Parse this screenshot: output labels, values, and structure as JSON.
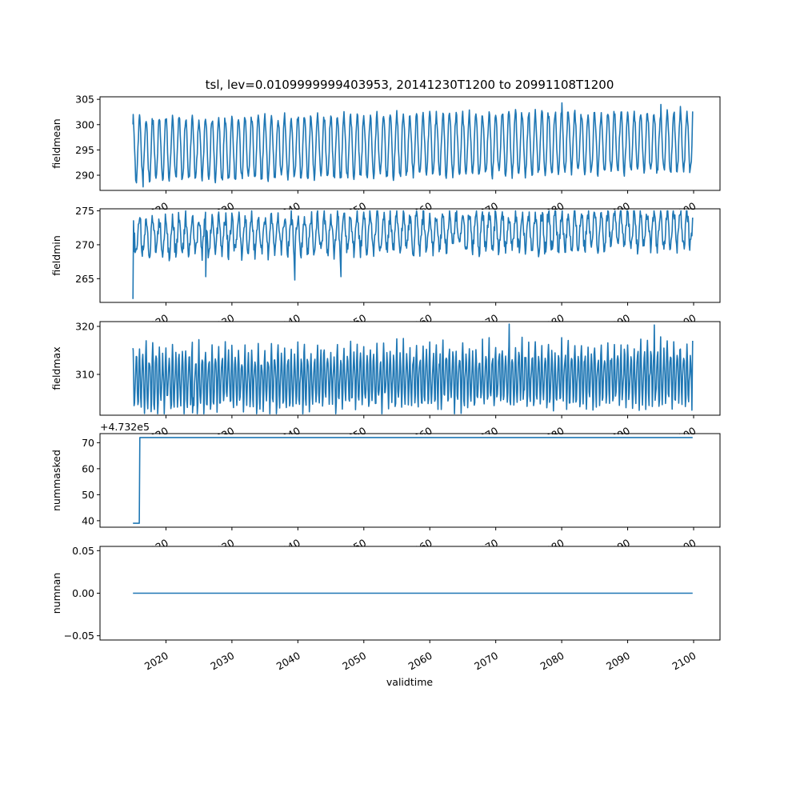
{
  "chart_data": {
    "type": "line",
    "title": "tsl, lev=0.0109999999403953, 20141230T1200 to 20991108T1200",
    "xlabel": "validtime",
    "x_range": [
      "2014-12-30",
      "2099-11-08"
    ],
    "xlim": [
      "2010-01-01",
      "2104-01-01"
    ],
    "x_tick_labels": [
      "2020",
      "2030",
      "2040",
      "2050",
      "2060",
      "2070",
      "2080",
      "2090",
      "2100"
    ],
    "series_color": "#1f77b4",
    "grid": false,
    "subplots": [
      {
        "ylabel": "fieldmean",
        "ylim": [
          287.0,
          305.5
        ],
        "y_ticks": [
          290,
          295,
          300,
          305
        ],
        "y_tick_labels": [
          "290",
          "295",
          "300",
          "305"
        ],
        "seasonal": {
          "center": 295.0,
          "amplitude": 6.0,
          "trend_per_year": 0.02,
          "period_years": 1.0,
          "noise": 1.0
        },
        "samples": [
          {
            "x": "2015-01-15",
            "y": 302.0
          },
          {
            "x": "2015-07-15",
            "y": 288.5
          },
          {
            "x": "2016-01-15",
            "y": 301.5
          },
          {
            "x": "2016-07-15",
            "y": 287.7
          },
          {
            "x": "2030-07-15",
            "y": 289.2
          },
          {
            "x": "2050-07-15",
            "y": 289.5
          },
          {
            "x": "2080-01-15",
            "y": 304.3
          },
          {
            "x": "2095-01-15",
            "y": 304.0
          },
          {
            "x": "2099-11-08",
            "y": 302.6
          }
        ]
      },
      {
        "ylabel": "fieldmin",
        "ylim": [
          261.5,
          275.3
        ],
        "y_ticks": [
          265,
          270,
          275
        ],
        "y_tick_labels": [
          "265",
          "270",
          "275"
        ],
        "seasonal": {
          "center": 271.3,
          "amplitude": 2.6,
          "trend_per_year": 0.012,
          "period_years": 1.0,
          "noise": 1.2
        },
        "samples": [
          {
            "x": "2014-12-30",
            "y": 262.0
          },
          {
            "x": "2015-03-15",
            "y": 269.0
          },
          {
            "x": "2016-01-15",
            "y": 274.0
          },
          {
            "x": "2026-01-15",
            "y": 265.3
          },
          {
            "x": "2039-07-15",
            "y": 264.8
          },
          {
            "x": "2046-07-15",
            "y": 265.3
          },
          {
            "x": "2099-11-08",
            "y": 274.0
          }
        ]
      },
      {
        "ylabel": "fieldmax",
        "ylim": [
          301.5,
          321.0
        ],
        "y_ticks": [
          310,
          320
        ],
        "y_tick_labels": [
          "310",
          "320"
        ],
        "seasonal": {
          "center": 309.0,
          "amplitude": 5.5,
          "trend_per_year": 0.01,
          "period_years": 0.5,
          "noise": 1.5
        },
        "samples": [
          {
            "x": "2015-01-15",
            "y": 315.0
          },
          {
            "x": "2024-01-15",
            "y": 302.0
          },
          {
            "x": "2072-01-15",
            "y": 320.5
          },
          {
            "x": "2094-01-15",
            "y": 320.3
          },
          {
            "x": "2099-11-08",
            "y": 317.0
          }
        ]
      },
      {
        "ylabel": "nummasked",
        "ylim": [
          37.5,
          73.5
        ],
        "y_ticks": [
          40,
          50,
          60,
          70
        ],
        "y_tick_labels": [
          "40",
          "50",
          "60",
          "70"
        ],
        "offset_text": "+4.732e5",
        "steps": [
          {
            "x": "2014-12-30",
            "y": 39
          },
          {
            "x": "2015-12-15",
            "y": 39
          },
          {
            "x": "2016-01-15",
            "y": 72
          },
          {
            "x": "2099-11-08",
            "y": 72
          }
        ]
      },
      {
        "ylabel": "numnan",
        "ylim": [
          -0.055,
          0.055
        ],
        "y_ticks": [
          -0.05,
          0.0,
          0.05
        ],
        "y_tick_labels": [
          "−0.05",
          "0.00",
          "0.05"
        ],
        "steps": [
          {
            "x": "2014-12-30",
            "y": 0.0
          },
          {
            "x": "2099-11-08",
            "y": 0.0
          }
        ]
      }
    ]
  }
}
